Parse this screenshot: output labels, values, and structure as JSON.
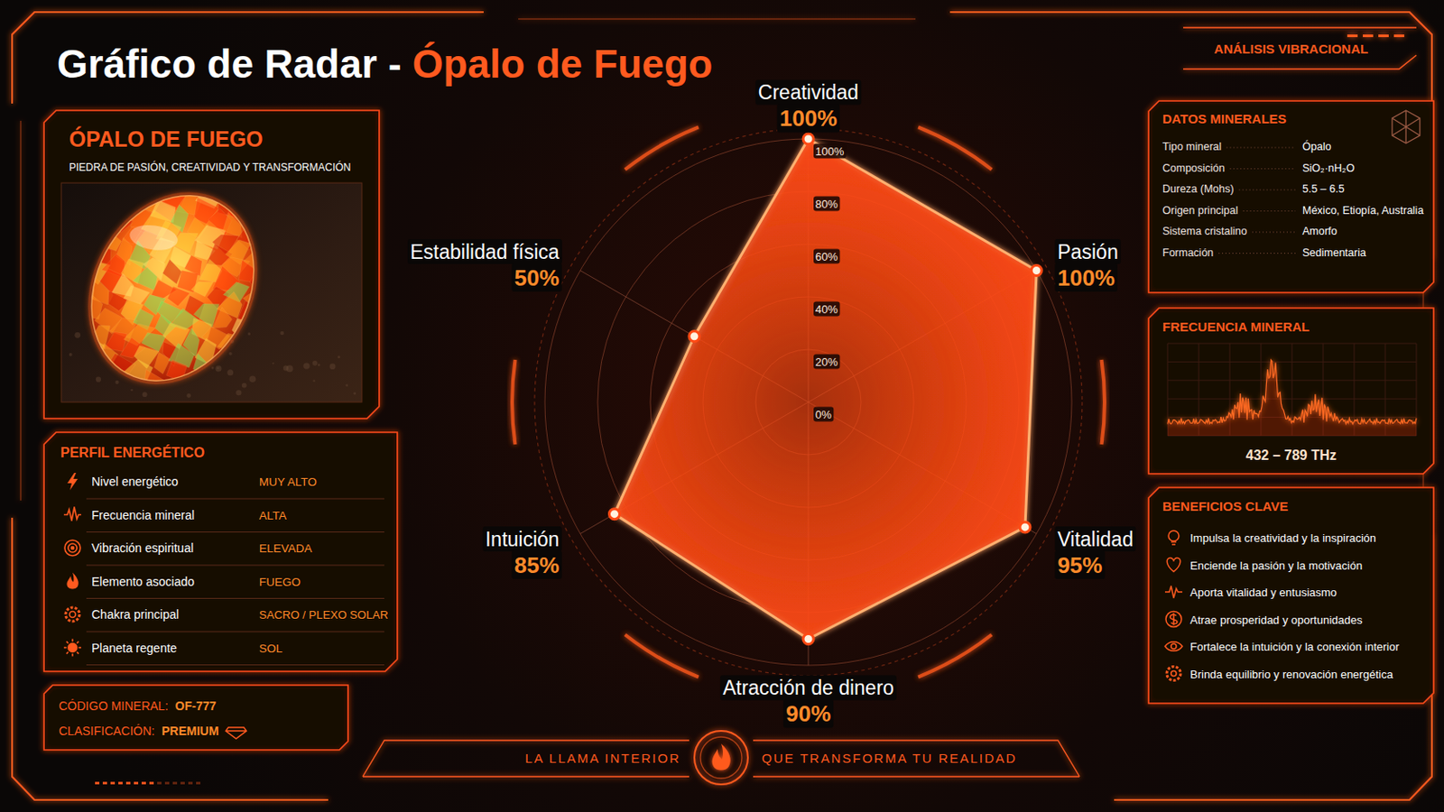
{
  "header": {
    "title": "Gráfico de Radar - ",
    "title_accent": "Ópalo de Fuego",
    "badge": "ANÁLISIS VIBRACIONAL"
  },
  "stone": {
    "title": "ÓPALO DE FUEGO",
    "subtitle": "PIEDRA DE PASIÓN, CREATIVIDAD Y TRANSFORMACIÓN"
  },
  "energy_profile": {
    "title": "PERFIL ENERGÉTICO",
    "rows": [
      {
        "label": "Nivel energético",
        "value": "MUY ALTO"
      },
      {
        "label": "Frecuencia mineral",
        "value": "ALTA"
      },
      {
        "label": "Vibración espiritual",
        "value": "ELEVADA"
      },
      {
        "label": "Elemento asociado",
        "value": "FUEGO"
      },
      {
        "label": "Chakra principal",
        "value": "SACRO / PLEXO SOLAR"
      },
      {
        "label": "Planeta regente",
        "value": "SOL"
      }
    ]
  },
  "identity": {
    "rows": [
      {
        "label": "CÓDIGO MINERAL:",
        "value": "OF-777"
      },
      {
        "label": "CLASIFICACIÓN:",
        "value": "PREMIUM"
      }
    ]
  },
  "chart_data": {
    "type": "radar",
    "categories": [
      "Creatividad",
      "Pasión",
      "Vitalidad",
      "Atracción de dinero",
      "Intuición",
      "Estabilidad física"
    ],
    "values": [
      100,
      100,
      95,
      90,
      85,
      50
    ],
    "value_labels": [
      "100%",
      "100%",
      "95%",
      "90%",
      "85%",
      "50%"
    ],
    "data_labels": true,
    "ylim": [
      0,
      100
    ],
    "yticks": [
      {
        "value": 0,
        "label": "0%"
      },
      {
        "value": 20,
        "label": "20%"
      },
      {
        "value": 40,
        "label": "40%"
      },
      {
        "value": 60,
        "label": "60%"
      },
      {
        "value": 80,
        "label": "80%"
      },
      {
        "value": 100,
        "label": "100%"
      }
    ],
    "grid": true,
    "color": "#ff4a14",
    "marker": "circle"
  },
  "mineral_data": {
    "title": "DATOS MINERALES",
    "rows": [
      {
        "label": "Tipo mineral",
        "value": "Ópalo"
      },
      {
        "label": "Composición",
        "value": "SiO₂·nH₂O"
      },
      {
        "label": "Dureza (Mohs)",
        "value": "5.5 – 6.5"
      },
      {
        "label": "Origen principal",
        "value": "México, Etiopía, Australia"
      },
      {
        "label": "Sistema cristalino",
        "value": "Amorfo"
      },
      {
        "label": "Formación",
        "value": "Sedimentaria"
      }
    ]
  },
  "frequency": {
    "title": "FRECUENCIA MINERAL",
    "range_label": "432 – 789 THz"
  },
  "benefits": {
    "title": "BENEFICIOS CLAVE",
    "items": [
      "Impulsa la creatividad y la inspiración",
      "Enciende la pasión y la motivación",
      "Aporta vitalidad y entusiasmo",
      "Atrae prosperidad y oportunidades",
      "Fortalece la intuición y la conexión interior",
      "Brinda equilibrio y renovación energética"
    ]
  },
  "footer": {
    "left": "LA LLAMA INTERIOR",
    "right": "QUE TRANSFORMA TU REALIDAD"
  }
}
